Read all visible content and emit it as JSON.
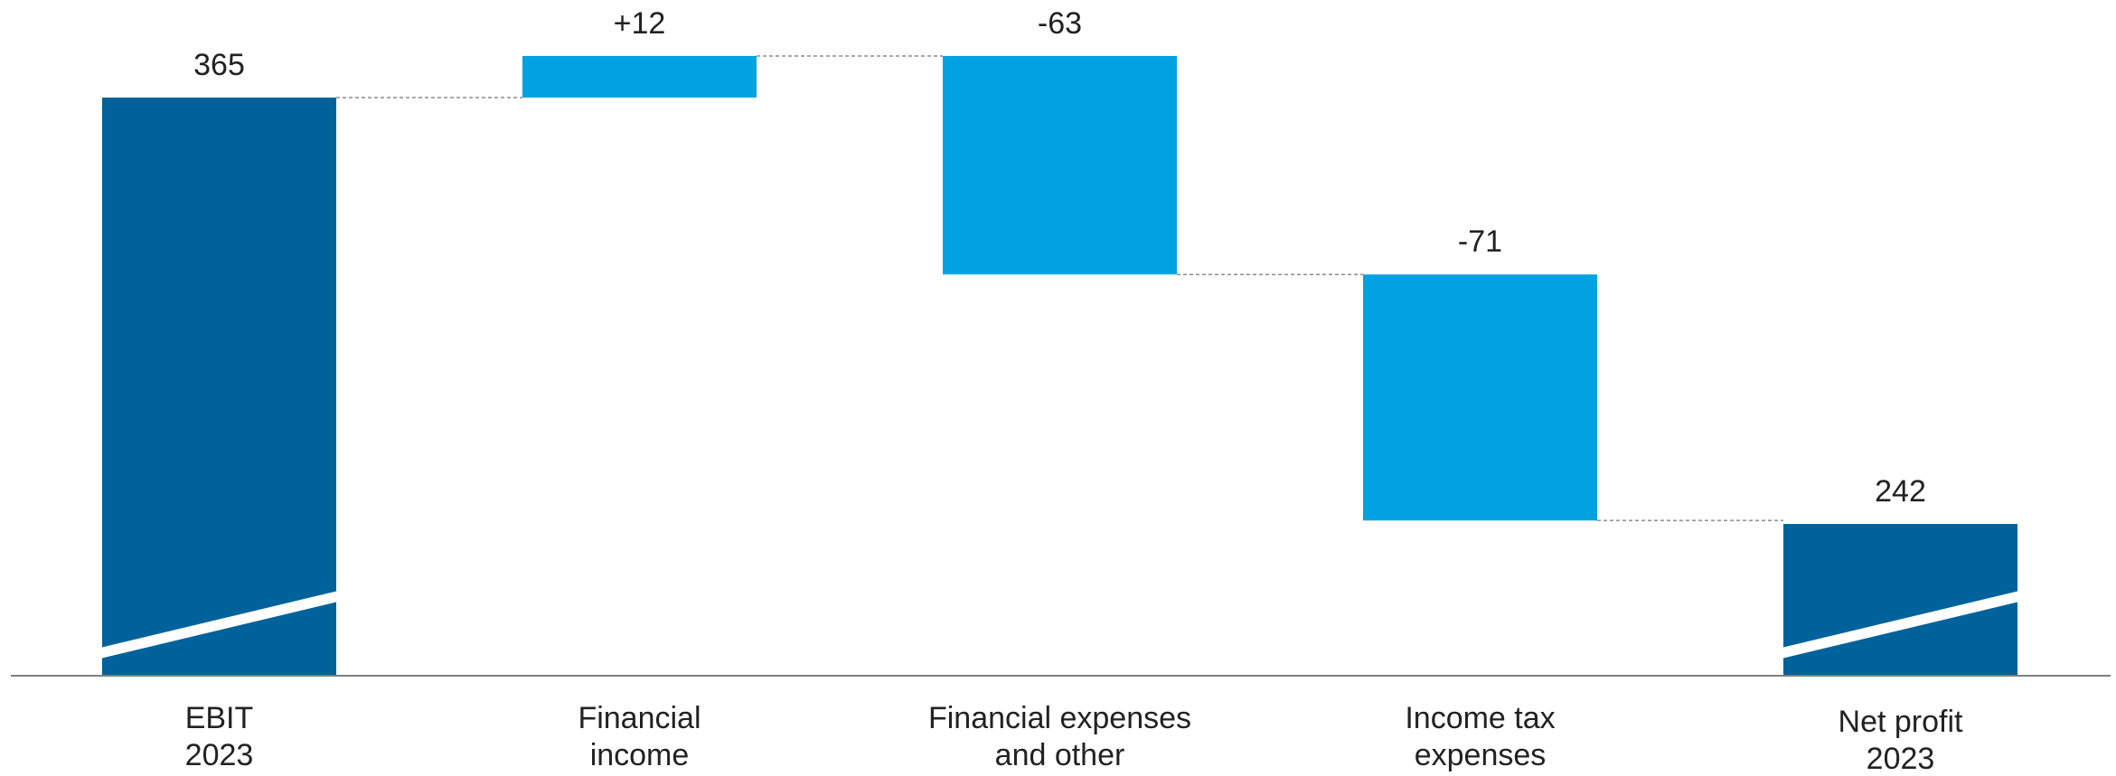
{
  "chart_data": {
    "type": "bar",
    "subtype": "waterfall",
    "title": "",
    "xlabel": "",
    "ylabel": "",
    "axis_break": true,
    "grid": false,
    "legend": "none",
    "unit": "",
    "colors": {
      "total": "#00629B",
      "delta": "#00A3E0",
      "connector": "#8C8C8C",
      "axis": "#7F7F7F",
      "text": "#222222"
    },
    "categories": [
      [
        "EBIT",
        "2023"
      ],
      [
        "Financial",
        "income"
      ],
      [
        "Financial expenses",
        "and other"
      ],
      [
        "Income tax",
        "expenses"
      ],
      [
        "Net profit",
        "2023"
      ]
    ],
    "bars": [
      {
        "kind": "total",
        "value": 365,
        "label": "365"
      },
      {
        "kind": "delta",
        "value": 12,
        "label": "+12"
      },
      {
        "kind": "delta",
        "value": -63,
        "label": "-63"
      },
      {
        "kind": "delta",
        "value": -71,
        "label": "-71"
      },
      {
        "kind": "total",
        "value": 242,
        "label": "242"
      }
    ]
  }
}
